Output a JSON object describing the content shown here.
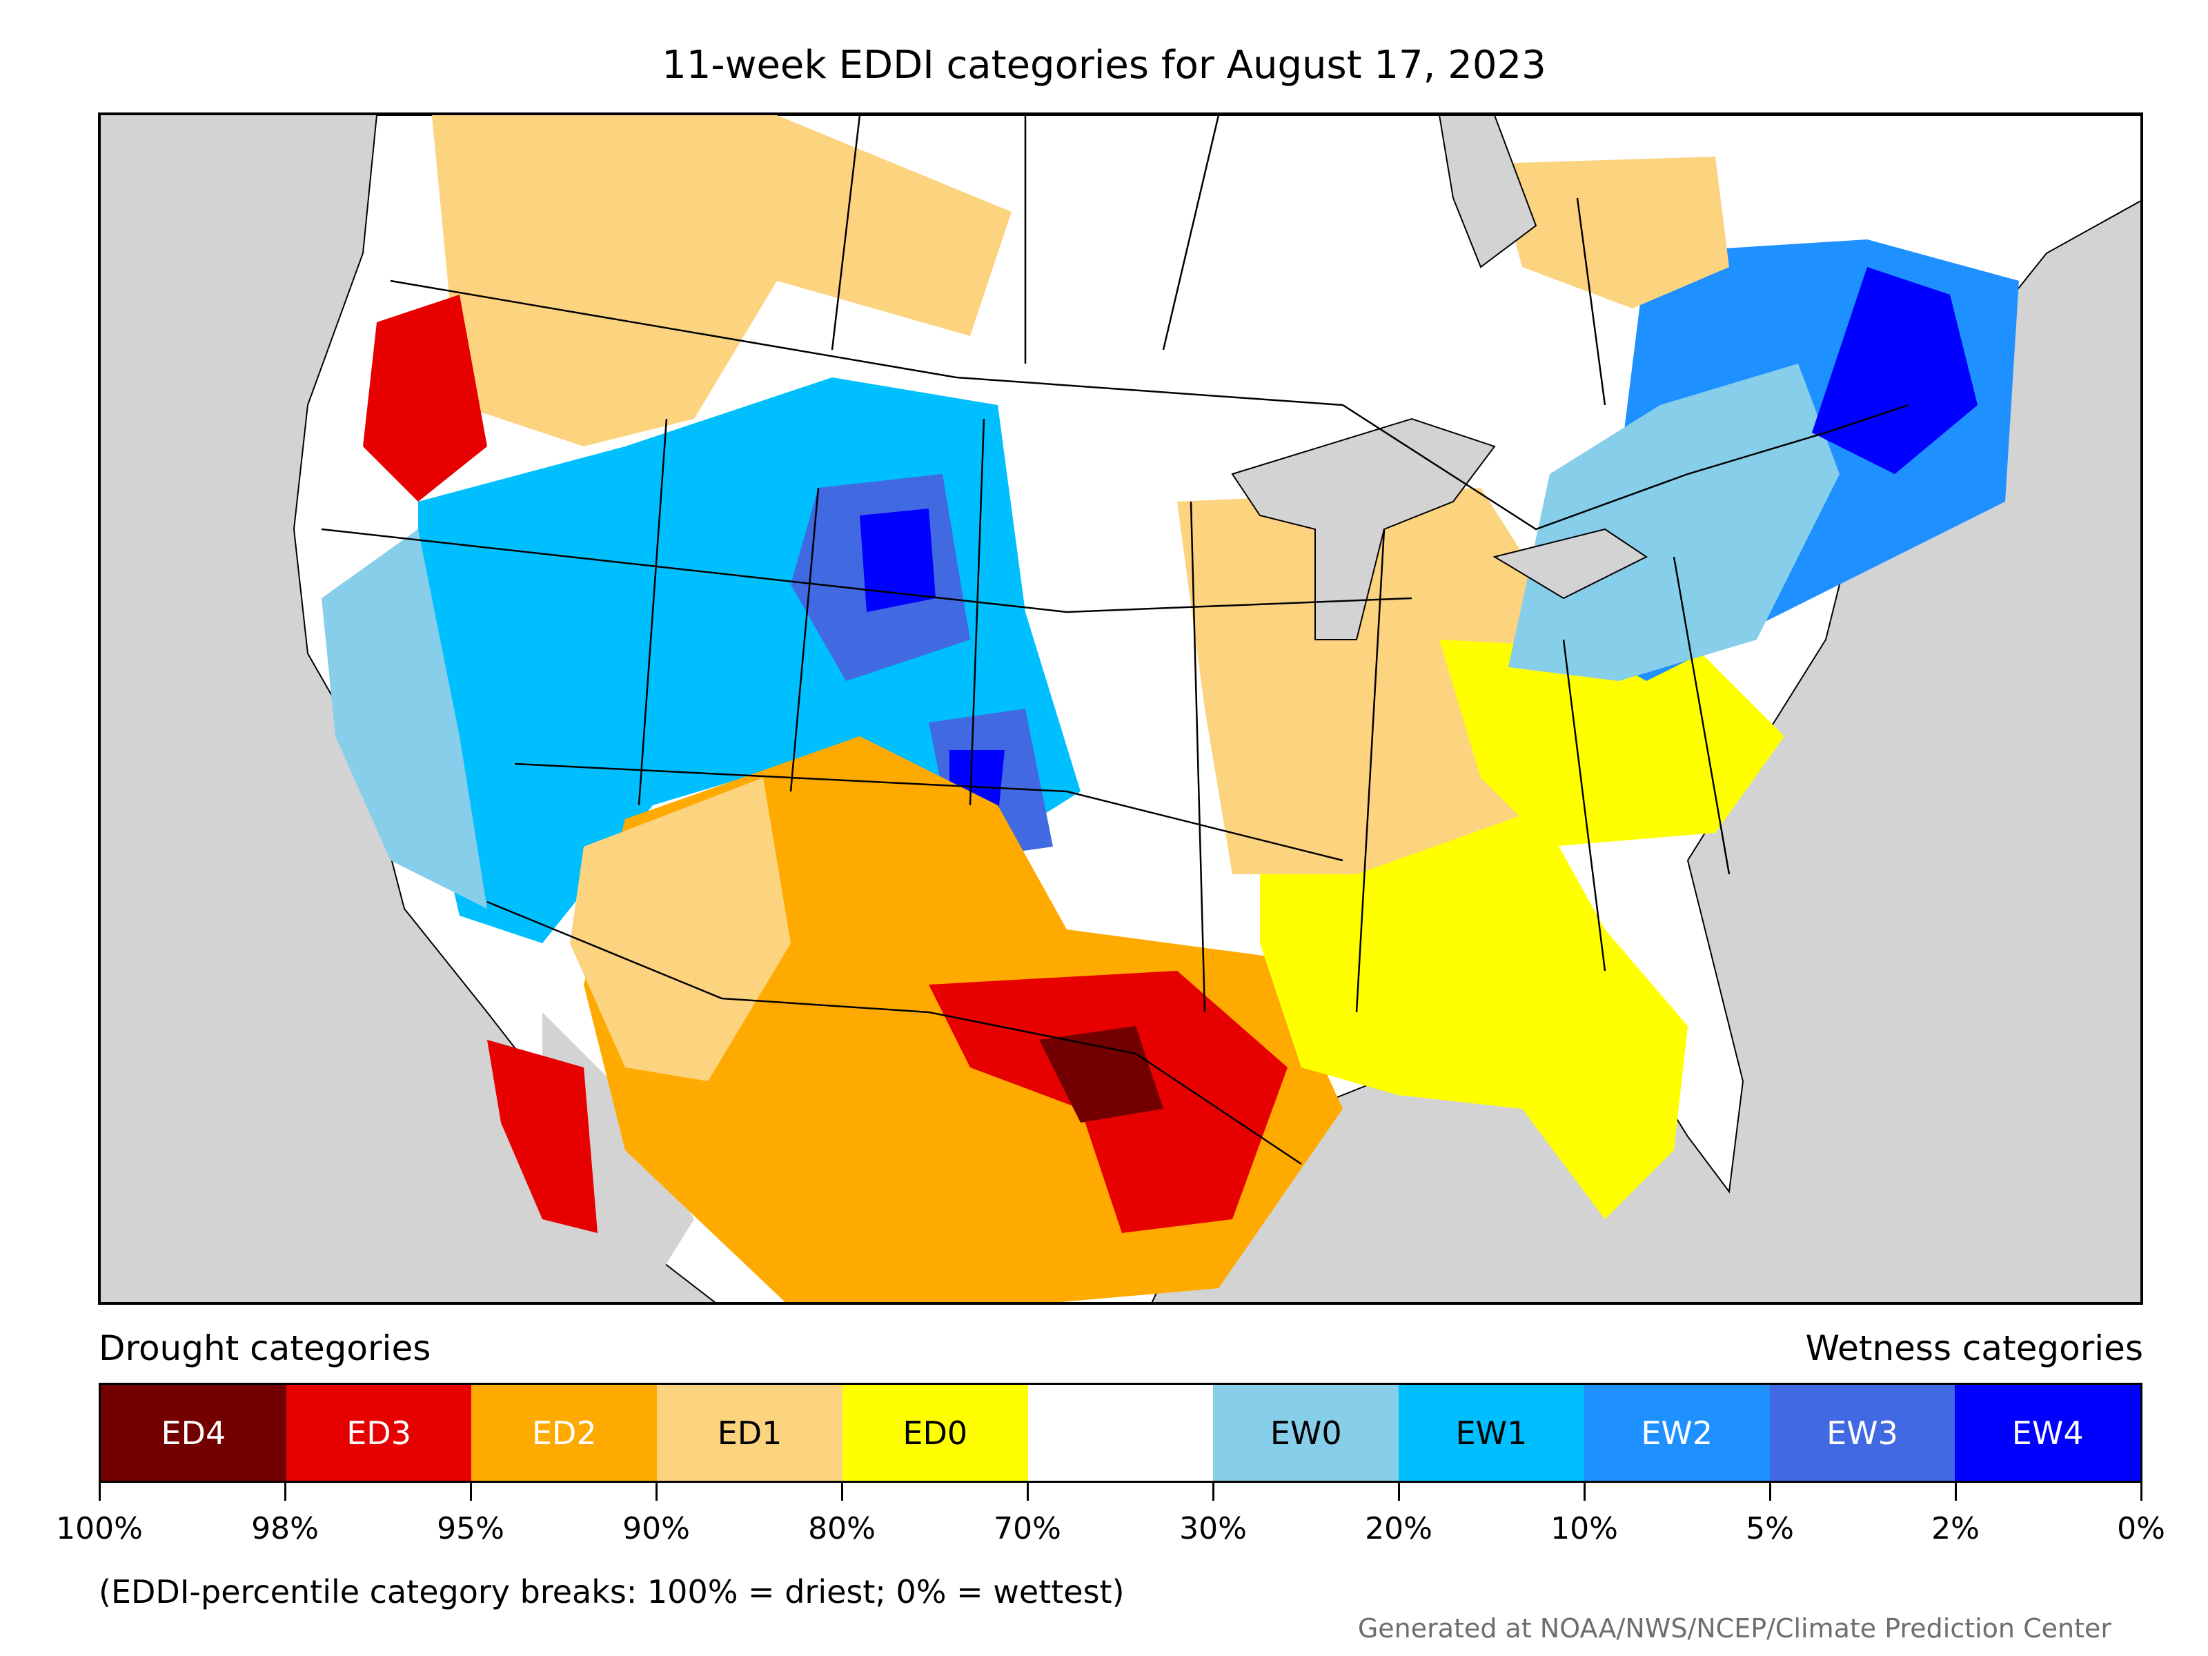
{
  "title": "11-week EDDI categories for August 17, 2023",
  "legend": {
    "left_label": "Drought categories",
    "right_label": "Wetness categories",
    "categories": [
      {
        "label": "ED4",
        "color": "#730000",
        "text_color": "#ffffff"
      },
      {
        "label": "ED3",
        "color": "#e60000",
        "text_color": "#ffffff"
      },
      {
        "label": "ED2",
        "color": "#ffaa00",
        "text_color": "#ffffff"
      },
      {
        "label": "ED1",
        "color": "#fcd37f",
        "text_color": "#000000"
      },
      {
        "label": "ED0",
        "color": "#ffff00",
        "text_color": "#000000"
      },
      {
        "label": "",
        "color": "#ffffff",
        "text_color": "#000000"
      },
      {
        "label": "EW0",
        "color": "#87ceeb",
        "text_color": "#000000"
      },
      {
        "label": "EW1",
        "color": "#00bfff",
        "text_color": "#000000"
      },
      {
        "label": "EW2",
        "color": "#1e90ff",
        "text_color": "#ffffff"
      },
      {
        "label": "EW3",
        "color": "#4169e1",
        "text_color": "#ffffff"
      },
      {
        "label": "EW4",
        "color": "#0000ff",
        "text_color": "#ffffff"
      }
    ],
    "ticks": [
      "100%",
      "98%",
      "95%",
      "90%",
      "80%",
      "70%",
      "30%",
      "20%",
      "10%",
      "5%",
      "2%",
      "0%"
    ]
  },
  "note": "(EDDI-percentile category breaks: 100% = driest; 0% = wettest)",
  "credit": "Generated at NOAA/NWS/NCEP/Climate Prediction Center",
  "map": {
    "background_color": "#d3d3d3",
    "land_color": "#ffffff",
    "boundary_color": "#000000"
  }
}
